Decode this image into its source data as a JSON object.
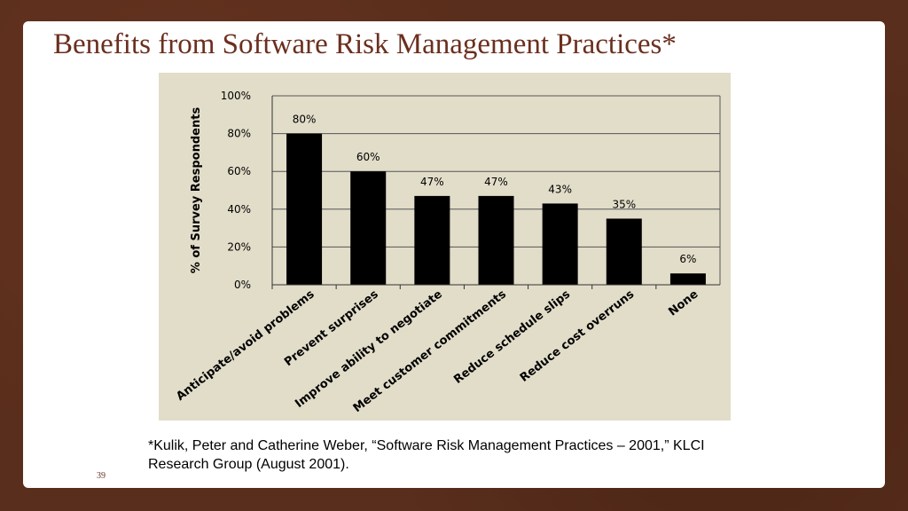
{
  "slide": {
    "title": "Benefits from Software Risk Management Practices*",
    "citation_line1": "*Kulik, Peter and Catherine Weber, “Software Risk Management Practices – 2001,” KLCI",
    "citation_line2": "Research Group (August 2001).",
    "slide_number": "39"
  },
  "colors": {
    "bar": "#000000",
    "plot_bg": "#e2ddc9",
    "title": "#6b2f1e"
  },
  "chart_data": {
    "type": "bar",
    "categories": [
      "Anticipate/avoid problems",
      "Prevent surprises",
      "Improve ability to negotiate",
      "Meet customer commitments",
      "Reduce schedule slips",
      "Reduce cost overruns",
      "None"
    ],
    "values": [
      80,
      60,
      47,
      47,
      43,
      35,
      6
    ],
    "data_labels": [
      "80%",
      "60%",
      "47%",
      "47%",
      "43%",
      "35%",
      "6%"
    ],
    "ylabel": "% of Survey Respondents",
    "ylim": [
      0,
      100
    ],
    "yticks": [
      0,
      20,
      40,
      60,
      80,
      100
    ],
    "ytick_labels": [
      "0%",
      "20%",
      "40%",
      "60%",
      "80%",
      "100%"
    ],
    "grid": true
  }
}
